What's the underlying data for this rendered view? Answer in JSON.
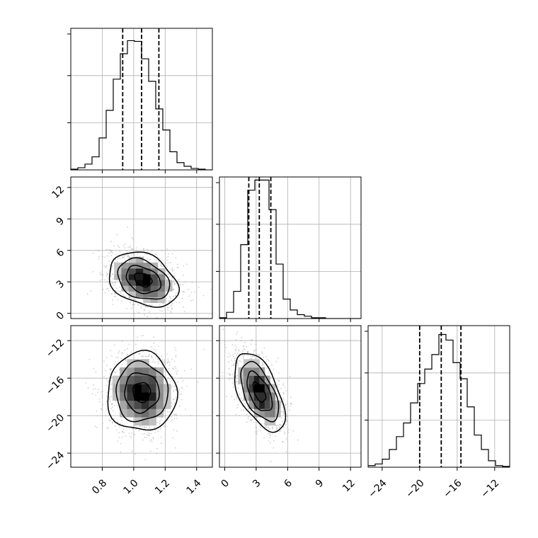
{
  "chart_data": {
    "type": "corner",
    "title": "",
    "params": [
      {
        "name": "",
        "range": [
          0.6,
          1.5
        ],
        "ticks": [
          0.8,
          1.0,
          1.2,
          1.4
        ],
        "tick_labels": [
          "0.8",
          "1.0",
          "1.2",
          "1.4"
        ]
      },
      {
        "name": "",
        "range": [
          -0.5,
          13.0
        ],
        "ticks": [
          0,
          3,
          6,
          9,
          12
        ],
        "tick_labels": [
          "0",
          "3",
          "6",
          "9",
          "12"
        ]
      },
      {
        "name": "",
        "range": [
          -25.5,
          -10.4
        ],
        "ticks": [
          -24,
          -20,
          -16,
          -12
        ],
        "tick_labels": [
          "−24",
          "−20",
          "−16",
          "−12"
        ]
      }
    ],
    "histograms": [
      {
        "param_index": 0,
        "bin_edges": [
          0.6,
          0.645,
          0.69,
          0.735,
          0.78,
          0.825,
          0.87,
          0.915,
          0.96,
          1.005,
          1.05,
          1.095,
          1.14,
          1.185,
          1.23,
          1.275,
          1.32,
          1.365,
          1.41,
          1.455,
          1.5
        ],
        "counts": [
          1,
          3,
          8,
          18,
          44,
          82,
          125,
          160,
          178,
          177,
          153,
          122,
          84,
          55,
          25,
          10,
          5,
          2,
          1,
          0
        ],
        "ymax": 195,
        "quantiles": [
          0.93,
          1.05,
          1.16
        ]
      },
      {
        "param_index": 1,
        "bin_edges": [
          -0.5,
          0.175,
          0.85,
          1.525,
          2.2,
          2.875,
          3.55,
          4.225,
          4.9,
          5.575,
          6.25,
          6.925,
          7.6,
          8.275,
          8.95,
          9.625,
          10.3,
          10.975,
          11.65,
          12.325,
          13.0
        ],
        "counts": [
          1,
          8,
          35,
          95,
          165,
          178,
          178,
          140,
          70,
          25,
          11,
          5,
          3,
          1,
          1,
          0,
          0,
          0,
          0,
          0
        ],
        "ymax": 182,
        "quantiles": [
          2.3,
          3.3,
          4.4
        ]
      },
      {
        "param_index": 2,
        "bin_edges": [
          -25.5,
          -24.745,
          -23.99,
          -23.235,
          -22.48,
          -21.725,
          -20.97,
          -20.215,
          -19.46,
          -18.705,
          -17.95,
          -17.195,
          -16.44,
          -15.685,
          -14.93,
          -14.175,
          -13.42,
          -12.665,
          -11.91,
          -11.155,
          -10.4
        ],
        "counts": [
          2,
          4,
          10,
          22,
          38,
          55,
          80,
          104,
          122,
          140,
          165,
          158,
          130,
          110,
          75,
          40,
          22,
          8,
          2,
          1
        ],
        "ymax": 176,
        "quantiles": [
          -20.0,
          -17.7,
          -15.6
        ]
      }
    ],
    "joint": [
      {
        "x_param": 0,
        "y_param": 1,
        "mean": [
          1.06,
          3.2
        ],
        "std": [
          0.11,
          1.3
        ],
        "corr": -0.3,
        "contour_levels": [
          "0.5-sigma",
          "1-sigma",
          "1.5-sigma",
          "2-sigma"
        ]
      },
      {
        "x_param": 0,
        "y_param": 2,
        "mean": [
          1.05,
          -17.5
        ],
        "std": [
          0.11,
          2.1
        ],
        "corr": 0.0,
        "contour_levels": [
          "0.5-sigma",
          "1-sigma",
          "1.5-sigma",
          "2-sigma"
        ]
      },
      {
        "x_param": 1,
        "y_param": 2,
        "mean": [
          3.3,
          -17.5
        ],
        "std": [
          1.2,
          2.1
        ],
        "corr": -0.55,
        "contour_levels": [
          "0.5-sigma",
          "1-sigma",
          "1.5-sigma",
          "2-sigma"
        ]
      }
    ],
    "grid": true,
    "legend": "none"
  }
}
